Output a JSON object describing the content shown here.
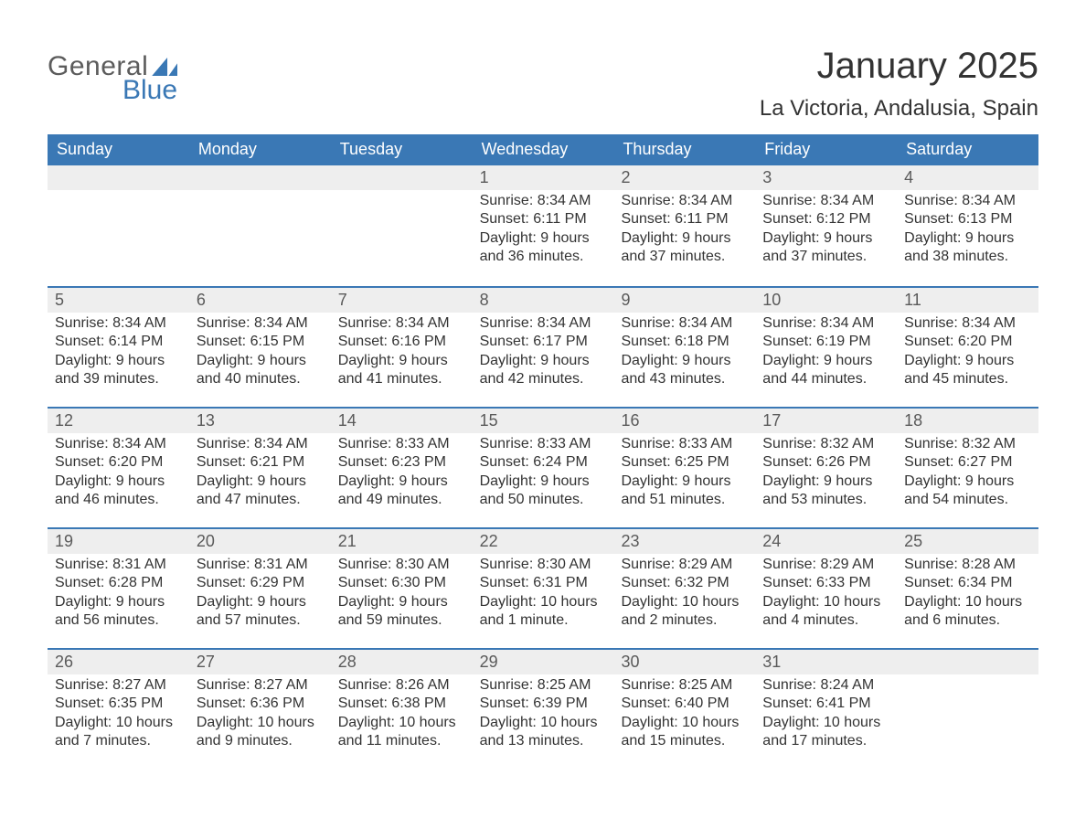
{
  "brand": {
    "general": "General",
    "blue": "Blue"
  },
  "title": "January 2025",
  "location": "La Victoria, Andalusia, Spain",
  "colors": {
    "header_bg": "#3a78b5",
    "header_text": "#ffffff",
    "daynum_bg": "#eeeeee",
    "daynum_text": "#5a5a5a",
    "body_text": "#333333",
    "divider": "#3a78b5",
    "page_bg": "#ffffff"
  },
  "weekdays": [
    "Sunday",
    "Monday",
    "Tuesday",
    "Wednesday",
    "Thursday",
    "Friday",
    "Saturday"
  ],
  "weeks": [
    [
      {
        "n": "",
        "sunrise": "",
        "sunset": "",
        "daylight": ""
      },
      {
        "n": "",
        "sunrise": "",
        "sunset": "",
        "daylight": ""
      },
      {
        "n": "",
        "sunrise": "",
        "sunset": "",
        "daylight": ""
      },
      {
        "n": "1",
        "sunrise": "Sunrise: 8:34 AM",
        "sunset": "Sunset: 6:11 PM",
        "daylight": "Daylight: 9 hours and 36 minutes."
      },
      {
        "n": "2",
        "sunrise": "Sunrise: 8:34 AM",
        "sunset": "Sunset: 6:11 PM",
        "daylight": "Daylight: 9 hours and 37 minutes."
      },
      {
        "n": "3",
        "sunrise": "Sunrise: 8:34 AM",
        "sunset": "Sunset: 6:12 PM",
        "daylight": "Daylight: 9 hours and 37 minutes."
      },
      {
        "n": "4",
        "sunrise": "Sunrise: 8:34 AM",
        "sunset": "Sunset: 6:13 PM",
        "daylight": "Daylight: 9 hours and 38 minutes."
      }
    ],
    [
      {
        "n": "5",
        "sunrise": "Sunrise: 8:34 AM",
        "sunset": "Sunset: 6:14 PM",
        "daylight": "Daylight: 9 hours and 39 minutes."
      },
      {
        "n": "6",
        "sunrise": "Sunrise: 8:34 AM",
        "sunset": "Sunset: 6:15 PM",
        "daylight": "Daylight: 9 hours and 40 minutes."
      },
      {
        "n": "7",
        "sunrise": "Sunrise: 8:34 AM",
        "sunset": "Sunset: 6:16 PM",
        "daylight": "Daylight: 9 hours and 41 minutes."
      },
      {
        "n": "8",
        "sunrise": "Sunrise: 8:34 AM",
        "sunset": "Sunset: 6:17 PM",
        "daylight": "Daylight: 9 hours and 42 minutes."
      },
      {
        "n": "9",
        "sunrise": "Sunrise: 8:34 AM",
        "sunset": "Sunset: 6:18 PM",
        "daylight": "Daylight: 9 hours and 43 minutes."
      },
      {
        "n": "10",
        "sunrise": "Sunrise: 8:34 AM",
        "sunset": "Sunset: 6:19 PM",
        "daylight": "Daylight: 9 hours and 44 minutes."
      },
      {
        "n": "11",
        "sunrise": "Sunrise: 8:34 AM",
        "sunset": "Sunset: 6:20 PM",
        "daylight": "Daylight: 9 hours and 45 minutes."
      }
    ],
    [
      {
        "n": "12",
        "sunrise": "Sunrise: 8:34 AM",
        "sunset": "Sunset: 6:20 PM",
        "daylight": "Daylight: 9 hours and 46 minutes."
      },
      {
        "n": "13",
        "sunrise": "Sunrise: 8:34 AM",
        "sunset": "Sunset: 6:21 PM",
        "daylight": "Daylight: 9 hours and 47 minutes."
      },
      {
        "n": "14",
        "sunrise": "Sunrise: 8:33 AM",
        "sunset": "Sunset: 6:23 PM",
        "daylight": "Daylight: 9 hours and 49 minutes."
      },
      {
        "n": "15",
        "sunrise": "Sunrise: 8:33 AM",
        "sunset": "Sunset: 6:24 PM",
        "daylight": "Daylight: 9 hours and 50 minutes."
      },
      {
        "n": "16",
        "sunrise": "Sunrise: 8:33 AM",
        "sunset": "Sunset: 6:25 PM",
        "daylight": "Daylight: 9 hours and 51 minutes."
      },
      {
        "n": "17",
        "sunrise": "Sunrise: 8:32 AM",
        "sunset": "Sunset: 6:26 PM",
        "daylight": "Daylight: 9 hours and 53 minutes."
      },
      {
        "n": "18",
        "sunrise": "Sunrise: 8:32 AM",
        "sunset": "Sunset: 6:27 PM",
        "daylight": "Daylight: 9 hours and 54 minutes."
      }
    ],
    [
      {
        "n": "19",
        "sunrise": "Sunrise: 8:31 AM",
        "sunset": "Sunset: 6:28 PM",
        "daylight": "Daylight: 9 hours and 56 minutes."
      },
      {
        "n": "20",
        "sunrise": "Sunrise: 8:31 AM",
        "sunset": "Sunset: 6:29 PM",
        "daylight": "Daylight: 9 hours and 57 minutes."
      },
      {
        "n": "21",
        "sunrise": "Sunrise: 8:30 AM",
        "sunset": "Sunset: 6:30 PM",
        "daylight": "Daylight: 9 hours and 59 minutes."
      },
      {
        "n": "22",
        "sunrise": "Sunrise: 8:30 AM",
        "sunset": "Sunset: 6:31 PM",
        "daylight": "Daylight: 10 hours and 1 minute."
      },
      {
        "n": "23",
        "sunrise": "Sunrise: 8:29 AM",
        "sunset": "Sunset: 6:32 PM",
        "daylight": "Daylight: 10 hours and 2 minutes."
      },
      {
        "n": "24",
        "sunrise": "Sunrise: 8:29 AM",
        "sunset": "Sunset: 6:33 PM",
        "daylight": "Daylight: 10 hours and 4 minutes."
      },
      {
        "n": "25",
        "sunrise": "Sunrise: 8:28 AM",
        "sunset": "Sunset: 6:34 PM",
        "daylight": "Daylight: 10 hours and 6 minutes."
      }
    ],
    [
      {
        "n": "26",
        "sunrise": "Sunrise: 8:27 AM",
        "sunset": "Sunset: 6:35 PM",
        "daylight": "Daylight: 10 hours and 7 minutes."
      },
      {
        "n": "27",
        "sunrise": "Sunrise: 8:27 AM",
        "sunset": "Sunset: 6:36 PM",
        "daylight": "Daylight: 10 hours and 9 minutes."
      },
      {
        "n": "28",
        "sunrise": "Sunrise: 8:26 AM",
        "sunset": "Sunset: 6:38 PM",
        "daylight": "Daylight: 10 hours and 11 minutes."
      },
      {
        "n": "29",
        "sunrise": "Sunrise: 8:25 AM",
        "sunset": "Sunset: 6:39 PM",
        "daylight": "Daylight: 10 hours and 13 minutes."
      },
      {
        "n": "30",
        "sunrise": "Sunrise: 8:25 AM",
        "sunset": "Sunset: 6:40 PM",
        "daylight": "Daylight: 10 hours and 15 minutes."
      },
      {
        "n": "31",
        "sunrise": "Sunrise: 8:24 AM",
        "sunset": "Sunset: 6:41 PM",
        "daylight": "Daylight: 10 hours and 17 minutes."
      },
      {
        "n": "",
        "sunrise": "",
        "sunset": "",
        "daylight": ""
      }
    ]
  ]
}
